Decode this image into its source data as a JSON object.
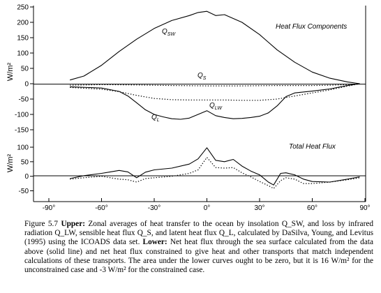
{
  "caption": {
    "label": "Figure 5.7",
    "upper_heading": "Upper:",
    "upper_text": "Zonal averages of heat transfer to the ocean by insolation Q_SW, and loss by infrared radiation Q_LW, sensible heat flux Q_S, and latent heat flux Q_L, calculated by DaSilva, Young, and Levitus (1995) using the ICOADS data set.",
    "lower_heading": "Lower:",
    "lower_text": "Net heat flux through the sea surface calculated from the data above (solid line) and net heat flux constrained to give heat and other transports that match independent calculations of these transports. The area under the lower curves ought to be zero, but it is 16 W/m² for the unconstrained case and -3 W/m² for the constrained case."
  },
  "chart_data": [
    {
      "type": "line",
      "title": "Heat Flux Components",
      "ylabel": "W/m²",
      "ylim": [
        -150,
        250
      ],
      "yticks": [
        -150,
        -100,
        -50,
        0,
        50,
        100,
        150,
        200,
        250
      ],
      "xlim": [
        -90,
        90
      ],
      "series": [
        {
          "name": "Q_SW",
          "style": "solid",
          "x": [
            -78,
            -70,
            -60,
            -50,
            -40,
            -30,
            -20,
            -10,
            -5,
            0,
            5,
            10,
            20,
            30,
            40,
            50,
            60,
            70,
            80,
            87
          ],
          "y": [
            12,
            25,
            60,
            105,
            145,
            180,
            206,
            222,
            232,
            236,
            222,
            225,
            200,
            160,
            110,
            70,
            38,
            18,
            6,
            0
          ]
        },
        {
          "name": "Q_S",
          "style": "dotted",
          "x": [
            -78,
            -60,
            -40,
            -20,
            0,
            20,
            40,
            60,
            70,
            80,
            87
          ],
          "y": [
            -5,
            -3,
            -4,
            -6,
            -7,
            -7,
            -6,
            -6,
            -5,
            -3,
            0
          ]
        },
        {
          "name": "Q_LW",
          "style": "dotted",
          "x": [
            -78,
            -60,
            -50,
            -40,
            -30,
            -20,
            -10,
            0,
            10,
            20,
            30,
            40,
            50,
            60,
            70,
            80,
            87
          ],
          "y": [
            -12,
            -18,
            -26,
            -38,
            -48,
            -52,
            -53,
            -53,
            -53,
            -54,
            -54,
            -50,
            -40,
            -30,
            -20,
            -8,
            0
          ]
        },
        {
          "name": "Q_L",
          "style": "solid",
          "x": [
            -78,
            -60,
            -50,
            -45,
            -40,
            -35,
            -30,
            -25,
            -20,
            -15,
            -10,
            -5,
            0,
            5,
            10,
            15,
            20,
            25,
            30,
            35,
            40,
            45,
            50,
            60,
            70,
            80,
            87
          ],
          "y": [
            -10,
            -14,
            -25,
            -40,
            -62,
            -85,
            -100,
            -108,
            -114,
            -116,
            -112,
            -100,
            -88,
            -104,
            -110,
            -114,
            -113,
            -110,
            -106,
            -95,
            -72,
            -42,
            -30,
            -24,
            -17,
            -6,
            0
          ]
        }
      ]
    },
    {
      "type": "line",
      "title": "Total Heat Flux",
      "ylabel": "W/m²",
      "ylim": [
        -60,
        110
      ],
      "yticks": [
        -50,
        0,
        50,
        100
      ],
      "xlim": [
        -90,
        90
      ],
      "xticks": [
        "-90°",
        "-60°",
        "-30°",
        "0°",
        "30°",
        "60°",
        "90°"
      ],
      "series": [
        {
          "name": "unconstrained (solid)",
          "style": "solid",
          "x": [
            -78,
            -70,
            -60,
            -55,
            -50,
            -45,
            -40,
            -35,
            -30,
            -20,
            -10,
            -5,
            0,
            5,
            10,
            15,
            20,
            25,
            30,
            35,
            38,
            42,
            45,
            50,
            55,
            60,
            70,
            80,
            87
          ],
          "y": [
            -8,
            2,
            10,
            15,
            20,
            15,
            -5,
            14,
            22,
            28,
            42,
            60,
            98,
            55,
            50,
            58,
            35,
            18,
            5,
            -20,
            -30,
            10,
            12,
            5,
            -10,
            -18,
            -20,
            -10,
            -2
          ]
        },
        {
          "name": "constrained (dotted)",
          "style": "dotted",
          "x": [
            -78,
            -70,
            -60,
            -50,
            -45,
            -40,
            -35,
            -30,
            -20,
            -10,
            -5,
            0,
            5,
            10,
            15,
            20,
            25,
            30,
            35,
            38,
            42,
            45,
            50,
            55,
            60,
            70,
            80,
            87
          ],
          "y": [
            -10,
            -5,
            0,
            -10,
            -12,
            -20,
            -8,
            -5,
            0,
            10,
            22,
            65,
            30,
            28,
            30,
            12,
            -2,
            -18,
            -32,
            -42,
            -15,
            -5,
            -10,
            -25,
            -25,
            -20,
            -12,
            -5
          ]
        }
      ]
    }
  ]
}
